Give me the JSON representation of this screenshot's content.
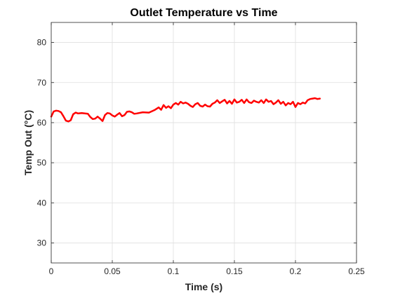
{
  "chart_data": {
    "type": "line",
    "title": "Outlet Temperature vs Time",
    "xlabel": "Time (s)",
    "ylabel": "Temp Out (°C)",
    "xlim": [
      0,
      0.25
    ],
    "ylim": [
      25,
      85
    ],
    "xticks": [
      0,
      0.05,
      0.1,
      0.15,
      0.2,
      0.25
    ],
    "xtick_labels": [
      "0",
      "0.05",
      "0.1",
      "0.15",
      "0.2",
      "0.25"
    ],
    "yticks": [
      30,
      40,
      50,
      60,
      70,
      80
    ],
    "ytick_labels": [
      "30",
      "40",
      "50",
      "60",
      "70",
      "80"
    ],
    "grid": true,
    "colors": {
      "line": "#ff0000",
      "axes": "#262626",
      "grid": "#dfdfdf"
    },
    "series": [
      {
        "x": [
          0,
          0.002,
          0.004,
          0.006,
          0.008,
          0.01,
          0.012,
          0.014,
          0.016,
          0.018,
          0.02,
          0.022,
          0.025,
          0.03,
          0.032,
          0.034,
          0.036,
          0.038,
          0.04,
          0.042,
          0.044,
          0.046,
          0.048,
          0.05,
          0.052,
          0.054,
          0.056,
          0.058,
          0.06,
          0.062,
          0.064,
          0.066,
          0.068,
          0.07,
          0.075,
          0.08,
          0.085,
          0.088,
          0.09,
          0.092,
          0.094,
          0.096,
          0.098,
          0.1,
          0.102,
          0.104,
          0.106,
          0.108,
          0.11,
          0.112,
          0.114,
          0.116,
          0.118,
          0.12,
          0.122,
          0.124,
          0.126,
          0.128,
          0.13,
          0.132,
          0.134,
          0.136,
          0.138,
          0.14,
          0.142,
          0.144,
          0.146,
          0.148,
          0.15,
          0.152,
          0.154,
          0.156,
          0.158,
          0.16,
          0.162,
          0.164,
          0.166,
          0.168,
          0.17,
          0.172,
          0.174,
          0.176,
          0.178,
          0.18,
          0.182,
          0.184,
          0.186,
          0.188,
          0.19,
          0.192,
          0.194,
          0.196,
          0.198,
          0.2,
          0.202,
          0.204,
          0.206,
          0.208,
          0.21,
          0.212,
          0.214,
          0.216,
          0.218,
          0.22
        ],
        "values": [
          61.5,
          62.8,
          63.0,
          62.9,
          62.6,
          61.6,
          60.5,
          60.3,
          60.6,
          62.1,
          62.5,
          62.3,
          62.4,
          62.2,
          61.4,
          60.9,
          61.0,
          61.5,
          61.0,
          60.4,
          61.9,
          62.4,
          62.3,
          61.8,
          61.5,
          62.0,
          62.4,
          61.6,
          61.9,
          62.7,
          62.8,
          62.6,
          62.2,
          62.3,
          62.6,
          62.5,
          63.2,
          63.8,
          63.2,
          64.4,
          63.7,
          64.1,
          63.6,
          64.5,
          64.9,
          64.5,
          65.2,
          64.8,
          65.0,
          64.7,
          64.2,
          63.9,
          64.6,
          64.9,
          64.2,
          64.0,
          64.5,
          64.1,
          64.0,
          64.7,
          65.0,
          65.6,
          64.9,
          65.3,
          65.7,
          64.8,
          65.4,
          64.7,
          65.8,
          65.0,
          65.2,
          65.7,
          64.9,
          65.8,
          65.1,
          64.9,
          65.5,
          65.2,
          65.0,
          65.6,
          64.9,
          65.8,
          65.2,
          65.4,
          64.6,
          65.0,
          65.6,
          64.7,
          65.2,
          64.3,
          64.9,
          64.6,
          65.2,
          63.9,
          64.9,
          64.6,
          65.0,
          64.8,
          65.6,
          65.9,
          66.0,
          66.1,
          65.9,
          66.0
        ]
      }
    ]
  }
}
